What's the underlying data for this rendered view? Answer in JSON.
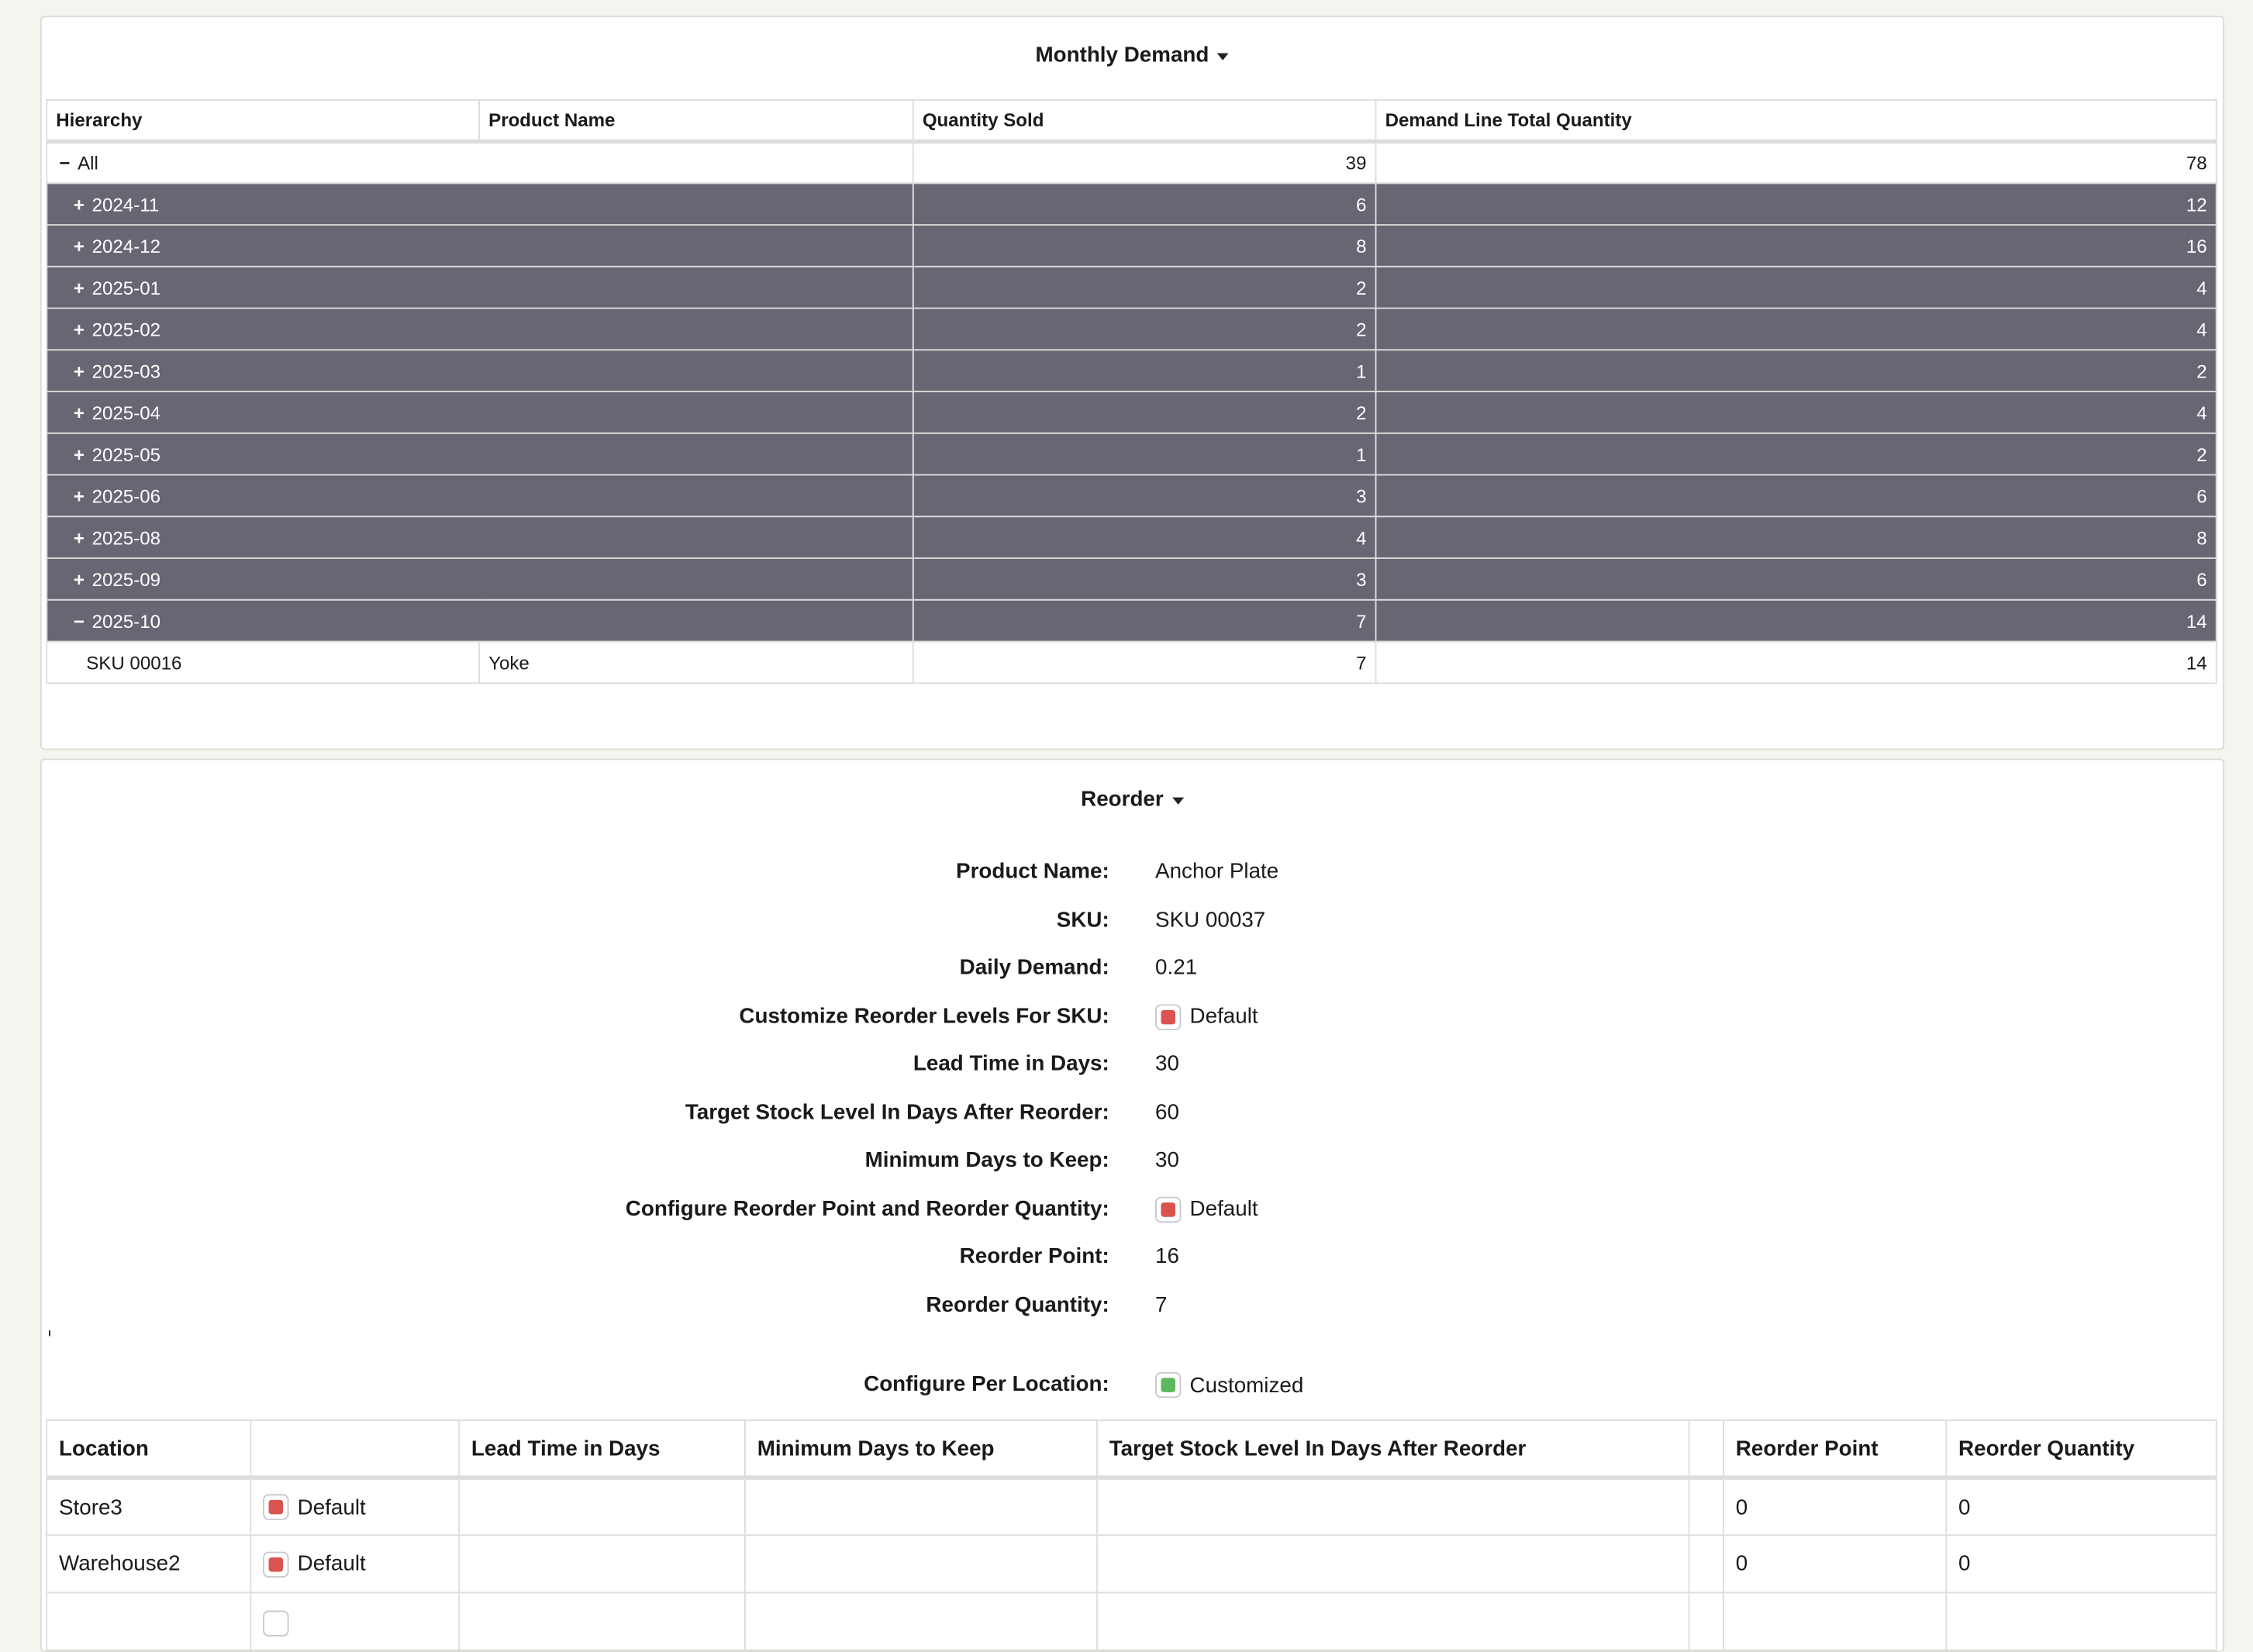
{
  "monthly_demand": {
    "title": "Monthly Demand",
    "columns": [
      "Hierarchy",
      "Product Name",
      "Quantity Sold",
      "Demand Line Total Quantity"
    ],
    "total_row": {
      "label": "All",
      "expanded": true,
      "quantity_sold": "39",
      "line_total": "78"
    },
    "rows": [
      {
        "label": "2024-11",
        "expanded": false,
        "quantity_sold": "6",
        "line_total": "12"
      },
      {
        "label": "2024-12",
        "expanded": false,
        "quantity_sold": "8",
        "line_total": "16"
      },
      {
        "label": "2025-01",
        "expanded": false,
        "quantity_sold": "2",
        "line_total": "4"
      },
      {
        "label": "2025-02",
        "expanded": false,
        "quantity_sold": "2",
        "line_total": "4"
      },
      {
        "label": "2025-03",
        "expanded": false,
        "quantity_sold": "1",
        "line_total": "2"
      },
      {
        "label": "2025-04",
        "expanded": false,
        "quantity_sold": "2",
        "line_total": "4"
      },
      {
        "label": "2025-05",
        "expanded": false,
        "quantity_sold": "1",
        "line_total": "2"
      },
      {
        "label": "2025-06",
        "expanded": false,
        "quantity_sold": "3",
        "line_total": "6"
      },
      {
        "label": "2025-08",
        "expanded": false,
        "quantity_sold": "4",
        "line_total": "8"
      },
      {
        "label": "2025-09",
        "expanded": false,
        "quantity_sold": "3",
        "line_total": "6"
      },
      {
        "label": "2025-10",
        "expanded": true,
        "quantity_sold": "7",
        "line_total": "14"
      }
    ],
    "detail_row": {
      "sku": "SKU 00016",
      "product_name": "Yoke",
      "quantity_sold": "7",
      "line_total": "14"
    }
  },
  "reorder": {
    "title": "Reorder",
    "fields": [
      {
        "label": "Product Name:",
        "value": "Anchor Plate"
      },
      {
        "label": "SKU:",
        "value": "SKU 00037"
      },
      {
        "label": "Daily Demand:",
        "value": "0.21"
      },
      {
        "label": "Customize Reorder Levels For SKU:",
        "value": "Default",
        "checkbox": "red"
      },
      {
        "label": "Lead Time in Days:",
        "value": "30"
      },
      {
        "label": "Target Stock Level In Days After Reorder:",
        "value": "60"
      },
      {
        "label": "Minimum Days to Keep:",
        "value": "30"
      },
      {
        "label": "Configure Reorder Point and Reorder Quantity:",
        "value": "Default",
        "checkbox": "red"
      },
      {
        "label": "Reorder Point:",
        "value": "16"
      },
      {
        "label": "Reorder Quantity:",
        "value": "7"
      }
    ],
    "per_location": {
      "label": "Configure Per Location:",
      "value": "Customized",
      "checkbox": "green"
    },
    "location_columns": [
      "Location",
      "",
      "Lead Time in Days",
      "Minimum Days to Keep",
      "Target Stock Level In Days After Reorder",
      "",
      "Reorder Point",
      "Reorder Quantity"
    ],
    "locations": [
      {
        "location": "Store3",
        "mode": "Default",
        "lead_time": "",
        "min_days": "",
        "target_days": "",
        "reorder_point": "0",
        "reorder_quantity": "0"
      },
      {
        "location": "Warehouse2",
        "mode": "Default",
        "lead_time": "",
        "min_days": "",
        "target_days": "",
        "reorder_point": "0",
        "reorder_quantity": "0"
      }
    ]
  },
  "colors": {
    "background": "#f6f4ee",
    "group_row": "#676773",
    "default_red": "#d9534f",
    "customized_green": "#5cb85c"
  }
}
